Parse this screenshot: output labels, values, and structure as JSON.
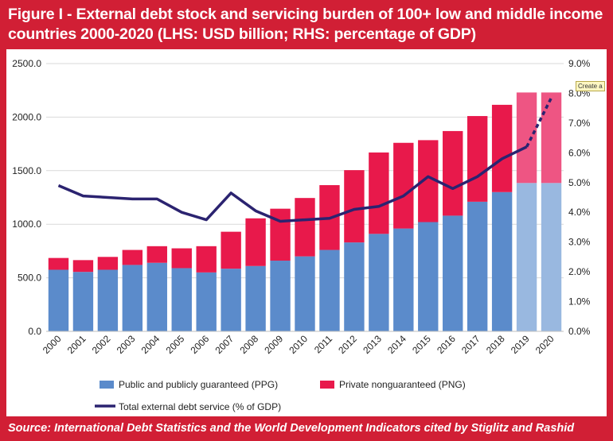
{
  "header": {
    "title": "Figure I - External debt stock and servicing burden of 100+ low and middle income countries 2000-2020 (LHS: USD billion; RHS: percentage of GDP)"
  },
  "footer": {
    "source": "Source: International Debt Statistics and the World Development Indicators cited by Stiglitz and Rashid"
  },
  "tooltip": {
    "text": "Create a"
  },
  "colors": {
    "background": "#d11f35",
    "ppg": "#5b8bcb",
    "png": "#e8194b",
    "ppg_projected": "#99b8e0",
    "png_projected": "#ee5583",
    "line": "#2b2370"
  },
  "chart_data": {
    "type": "bar",
    "title": "Figure I - External debt stock and servicing burden of 100+ low and middle income countries 2000-2020 (LHS: USD billion; RHS: percentage of GDP)",
    "categories": [
      "2000",
      "2001",
      "2002",
      "2003",
      "2004",
      "2005",
      "2006",
      "2007",
      "2008",
      "2009",
      "2010",
      "2011",
      "2012",
      "2013",
      "2014",
      "2015",
      "2016",
      "2017",
      "2018",
      "2019",
      "2020"
    ],
    "ylim": [
      0,
      2500
    ],
    "y_ticks": [
      "0.0",
      "500.0",
      "1000.0",
      "1500.0",
      "2000.0",
      "2500.0"
    ],
    "y2lim": [
      0,
      9
    ],
    "y2_ticks": [
      "0.0%",
      "1.0%",
      "2.0%",
      "3.0%",
      "4.0%",
      "5.0%",
      "6.0%",
      "7.0%",
      "8.0%",
      "9.0%"
    ],
    "stacked": true,
    "projected_from": "2019",
    "series": [
      {
        "name": "Public and publicly guaranteed (PPG)",
        "type": "bar",
        "axis": "left",
        "values": [
          575,
          555,
          575,
          620,
          640,
          590,
          550,
          585,
          610,
          660,
          700,
          760,
          830,
          910,
          960,
          1020,
          1080,
          1210,
          1300,
          1385,
          1385
        ]
      },
      {
        "name": "Private nonguaranteed (PNG)",
        "type": "bar",
        "axis": "left",
        "values": [
          110,
          110,
          120,
          140,
          155,
          185,
          245,
          345,
          445,
          485,
          545,
          605,
          675,
          760,
          800,
          765,
          790,
          800,
          815,
          845,
          845
        ]
      },
      {
        "name": "Total external debt service (% of GDP)",
        "type": "line",
        "axis": "right",
        "values": [
          4.9,
          4.55,
          4.5,
          4.45,
          4.45,
          4.0,
          3.75,
          4.65,
          4.05,
          3.7,
          3.75,
          3.8,
          4.1,
          4.2,
          4.55,
          5.2,
          4.8,
          5.2,
          5.8,
          6.2,
          7.85
        ]
      }
    ],
    "legend": {
      "position": "bottom",
      "items": [
        "Public and publicly guaranteed (PPG)",
        "Private nonguaranteed (PNG)",
        "Total external debt service (% of GDP)"
      ]
    },
    "grid": true
  }
}
